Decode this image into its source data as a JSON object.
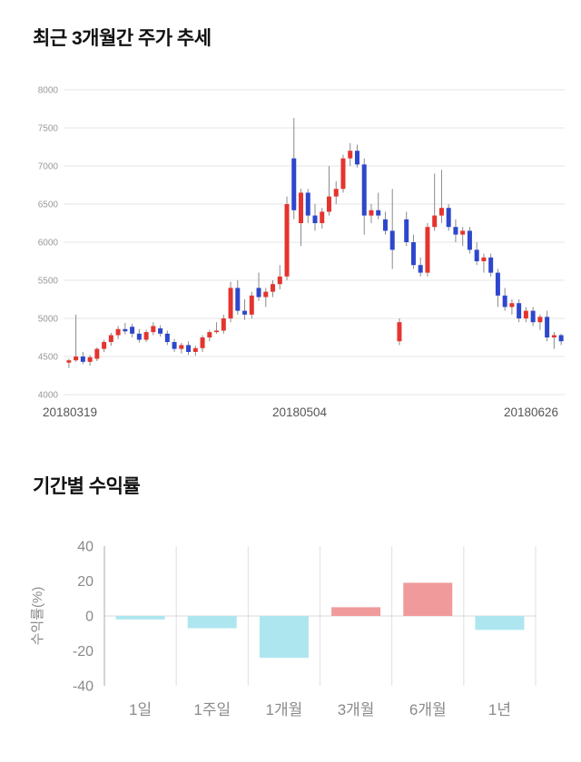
{
  "price_section": {
    "title": "최근 3개월간 주가 추세"
  },
  "returns_section": {
    "title": "기간별 수익률"
  },
  "chart_data": [
    {
      "type": "candlestick",
      "title": "최근 3개월간 주가 추세",
      "x_labels": [
        "20180319",
        "20180504",
        "20180626"
      ],
      "y_ticks": [
        8000,
        7500,
        7000,
        6500,
        6000,
        5500,
        5000,
        4500,
        4000
      ],
      "ylim": [
        4000,
        8000
      ],
      "grid": true,
      "up_color": "#e5342e",
      "down_color": "#2d47cc",
      "wick_color": "#8a8a8a",
      "grid_color": "#e4e4e4",
      "tick_color": "#999999",
      "xlabel_color": "#555555",
      "candles": [
        [
          4420,
          4470,
          4350,
          4450
        ],
        [
          4450,
          5050,
          4430,
          4500
        ],
        [
          4500,
          4560,
          4400,
          4430
        ],
        [
          4430,
          4520,
          4380,
          4490
        ],
        [
          4470,
          4620,
          4440,
          4600
        ],
        [
          4600,
          4720,
          4560,
          4690
        ],
        [
          4690,
          4810,
          4640,
          4780
        ],
        [
          4780,
          4900,
          4730,
          4860
        ],
        [
          4860,
          4940,
          4790,
          4830
        ],
        [
          4890,
          4930,
          4750,
          4800
        ],
        [
          4800,
          4860,
          4680,
          4720
        ],
        [
          4720,
          4850,
          4690,
          4820
        ],
        [
          4820,
          4950,
          4780,
          4900
        ],
        [
          4870,
          4910,
          4760,
          4800
        ],
        [
          4800,
          4840,
          4650,
          4690
        ],
        [
          4690,
          4730,
          4560,
          4600
        ],
        [
          4600,
          4680,
          4540,
          4650
        ],
        [
          4650,
          4700,
          4520,
          4560
        ],
        [
          4560,
          4640,
          4510,
          4610
        ],
        [
          4610,
          4780,
          4560,
          4750
        ],
        [
          4750,
          4850,
          4700,
          4820
        ],
        [
          4820,
          4950,
          4800,
          4840
        ],
        [
          4840,
          5050,
          4800,
          5000
        ],
        [
          5000,
          5480,
          4950,
          5400
        ],
        [
          5400,
          5500,
          5050,
          5100
        ],
        [
          5100,
          5250,
          4980,
          5050
        ],
        [
          5050,
          5350,
          5000,
          5300
        ],
        [
          5400,
          5600,
          5230,
          5280
        ],
        [
          5280,
          5400,
          5150,
          5350
        ],
        [
          5350,
          5500,
          5280,
          5450
        ],
        [
          5450,
          5700,
          5380,
          5550
        ],
        [
          5550,
          6600,
          5500,
          6500
        ],
        [
          7100,
          7630,
          6300,
          6420
        ],
        [
          6250,
          6700,
          5950,
          6650
        ],
        [
          6650,
          6700,
          6250,
          6350
        ],
        [
          6350,
          6500,
          6150,
          6250
        ],
        [
          6250,
          6450,
          6180,
          6400
        ],
        [
          6400,
          7000,
          6350,
          6600
        ],
        [
          6600,
          6800,
          6500,
          6700
        ],
        [
          6700,
          7150,
          6650,
          7100
        ],
        [
          7100,
          7300,
          7000,
          7200
        ],
        [
          7200,
          7280,
          6980,
          7020
        ],
        [
          7020,
          7100,
          6100,
          6350
        ],
        [
          6350,
          6500,
          6250,
          6420
        ],
        [
          6420,
          6650,
          6300,
          6350
        ],
        [
          6300,
          6400,
          6100,
          6150
        ],
        [
          6150,
          6700,
          5650,
          5900
        ],
        [
          4700,
          5000,
          4650,
          4950
        ],
        [
          6300,
          6400,
          5950,
          6000
        ],
        [
          6000,
          6100,
          5650,
          5700
        ],
        [
          5700,
          5800,
          5550,
          5600
        ],
        [
          5600,
          6250,
          5550,
          6200
        ],
        [
          6200,
          6900,
          6150,
          6350
        ],
        [
          6350,
          6950,
          6250,
          6450
        ],
        [
          6450,
          6500,
          6150,
          6200
        ],
        [
          6200,
          6300,
          6000,
          6100
        ],
        [
          6100,
          6200,
          5950,
          6150
        ],
        [
          6150,
          6200,
          5850,
          5900
        ],
        [
          5900,
          6000,
          5700,
          5750
        ],
        [
          5750,
          5850,
          5600,
          5800
        ],
        [
          5800,
          5850,
          5550,
          5600
        ],
        [
          5600,
          5650,
          5150,
          5300
        ],
        [
          5300,
          5400,
          5100,
          5150
        ],
        [
          5150,
          5250,
          5050,
          5200
        ],
        [
          5200,
          5250,
          4950,
          5000
        ],
        [
          5000,
          5150,
          4950,
          5100
        ],
        [
          5100,
          5150,
          4900,
          4950
        ],
        [
          4950,
          5050,
          4850,
          5020
        ],
        [
          5020,
          5100,
          4700,
          4750
        ],
        [
          4750,
          4820,
          4600,
          4780
        ],
        [
          4780,
          4800,
          4650,
          4700
        ]
      ]
    },
    {
      "type": "bar",
      "title": "기간별 수익률",
      "ylabel": "수익률(%)",
      "categories": [
        "1일",
        "1주일",
        "1개월",
        "3개월",
        "6개월",
        "1년"
      ],
      "values": [
        -2,
        -7,
        -24,
        5,
        19,
        -8
      ],
      "ylim": [
        -40,
        40
      ],
      "y_ticks": [
        40,
        20,
        0,
        -20,
        -40
      ],
      "positive_color": "#f09a9c",
      "negative_color": "#aee6f0",
      "grid_color": "#e0e0e0",
      "axis_color": "#aaaaaa",
      "zero_line_color": "#d8d8d8",
      "tick_color": "#8a8a8a",
      "label_color": "#8a8a8a"
    }
  ]
}
